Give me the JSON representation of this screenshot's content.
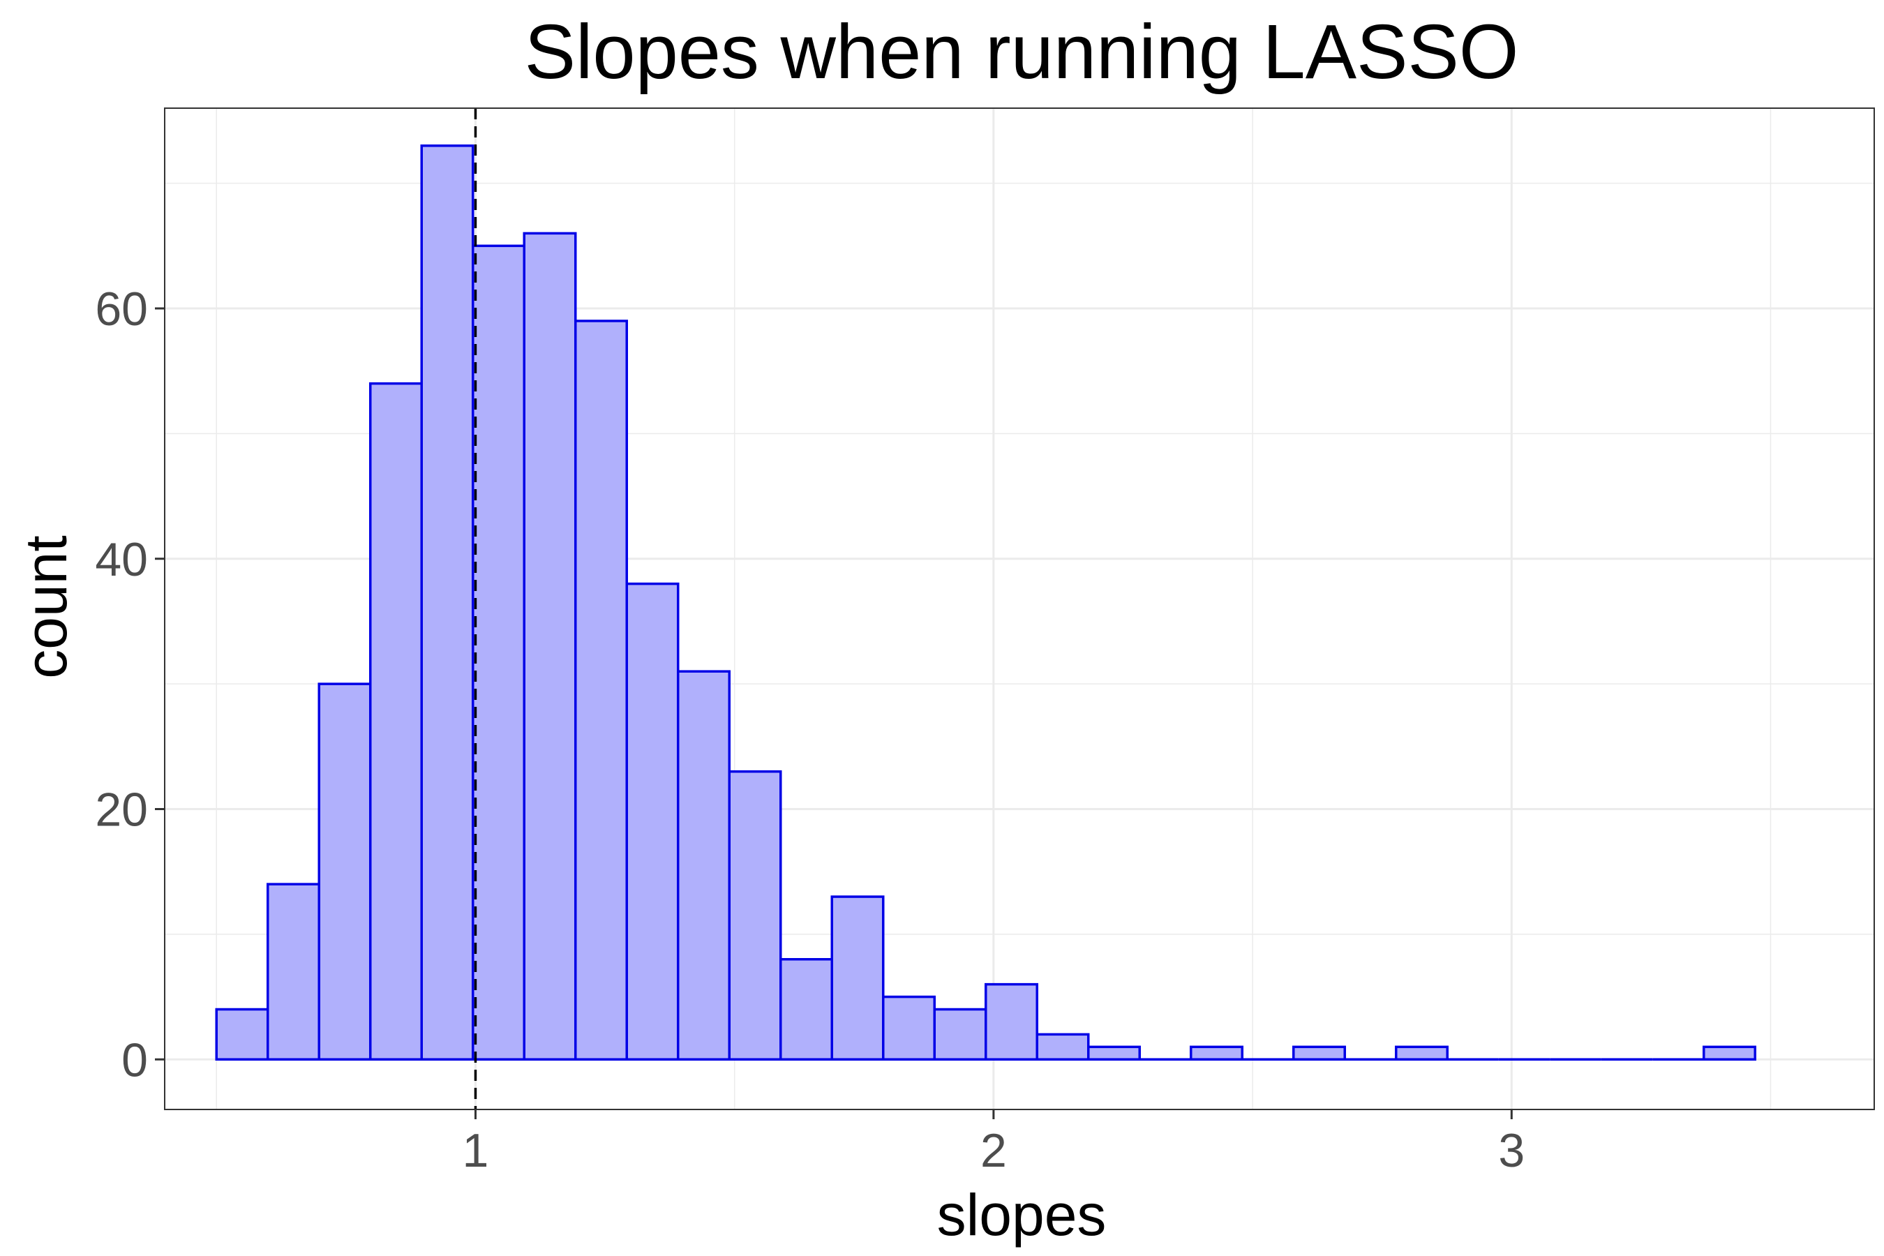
{
  "chart_data": {
    "type": "bar",
    "title": "Slopes when running LASSO",
    "xlabel": "slopes",
    "ylabel": "count",
    "xlim": [
      0.4,
      3.7
    ],
    "ylim": [
      -4,
      76
    ],
    "x_ticks": [
      1,
      2,
      3
    ],
    "x_tick_labels": [
      "1",
      "2",
      "3"
    ],
    "y_ticks": [
      0,
      20,
      40,
      60
    ],
    "y_tick_labels": [
      "0",
      "20",
      "40",
      "60"
    ],
    "bin_width": 0.099,
    "first_bin_left": 0.5,
    "values": [
      4,
      14,
      30,
      54,
      73,
      65,
      66,
      59,
      38,
      31,
      23,
      8,
      13,
      5,
      4,
      6,
      2,
      1,
      0,
      1,
      0,
      1,
      0,
      1,
      0,
      0,
      0,
      0,
      0,
      1
    ],
    "reference_line": {
      "x": 1,
      "style": "dashed",
      "color": "#000000"
    },
    "grid": true,
    "bar_fill": "#b0b0fc",
    "bar_stroke": "#0000e6",
    "grid_color": "#ebebeb",
    "panel_border": "#333333"
  }
}
